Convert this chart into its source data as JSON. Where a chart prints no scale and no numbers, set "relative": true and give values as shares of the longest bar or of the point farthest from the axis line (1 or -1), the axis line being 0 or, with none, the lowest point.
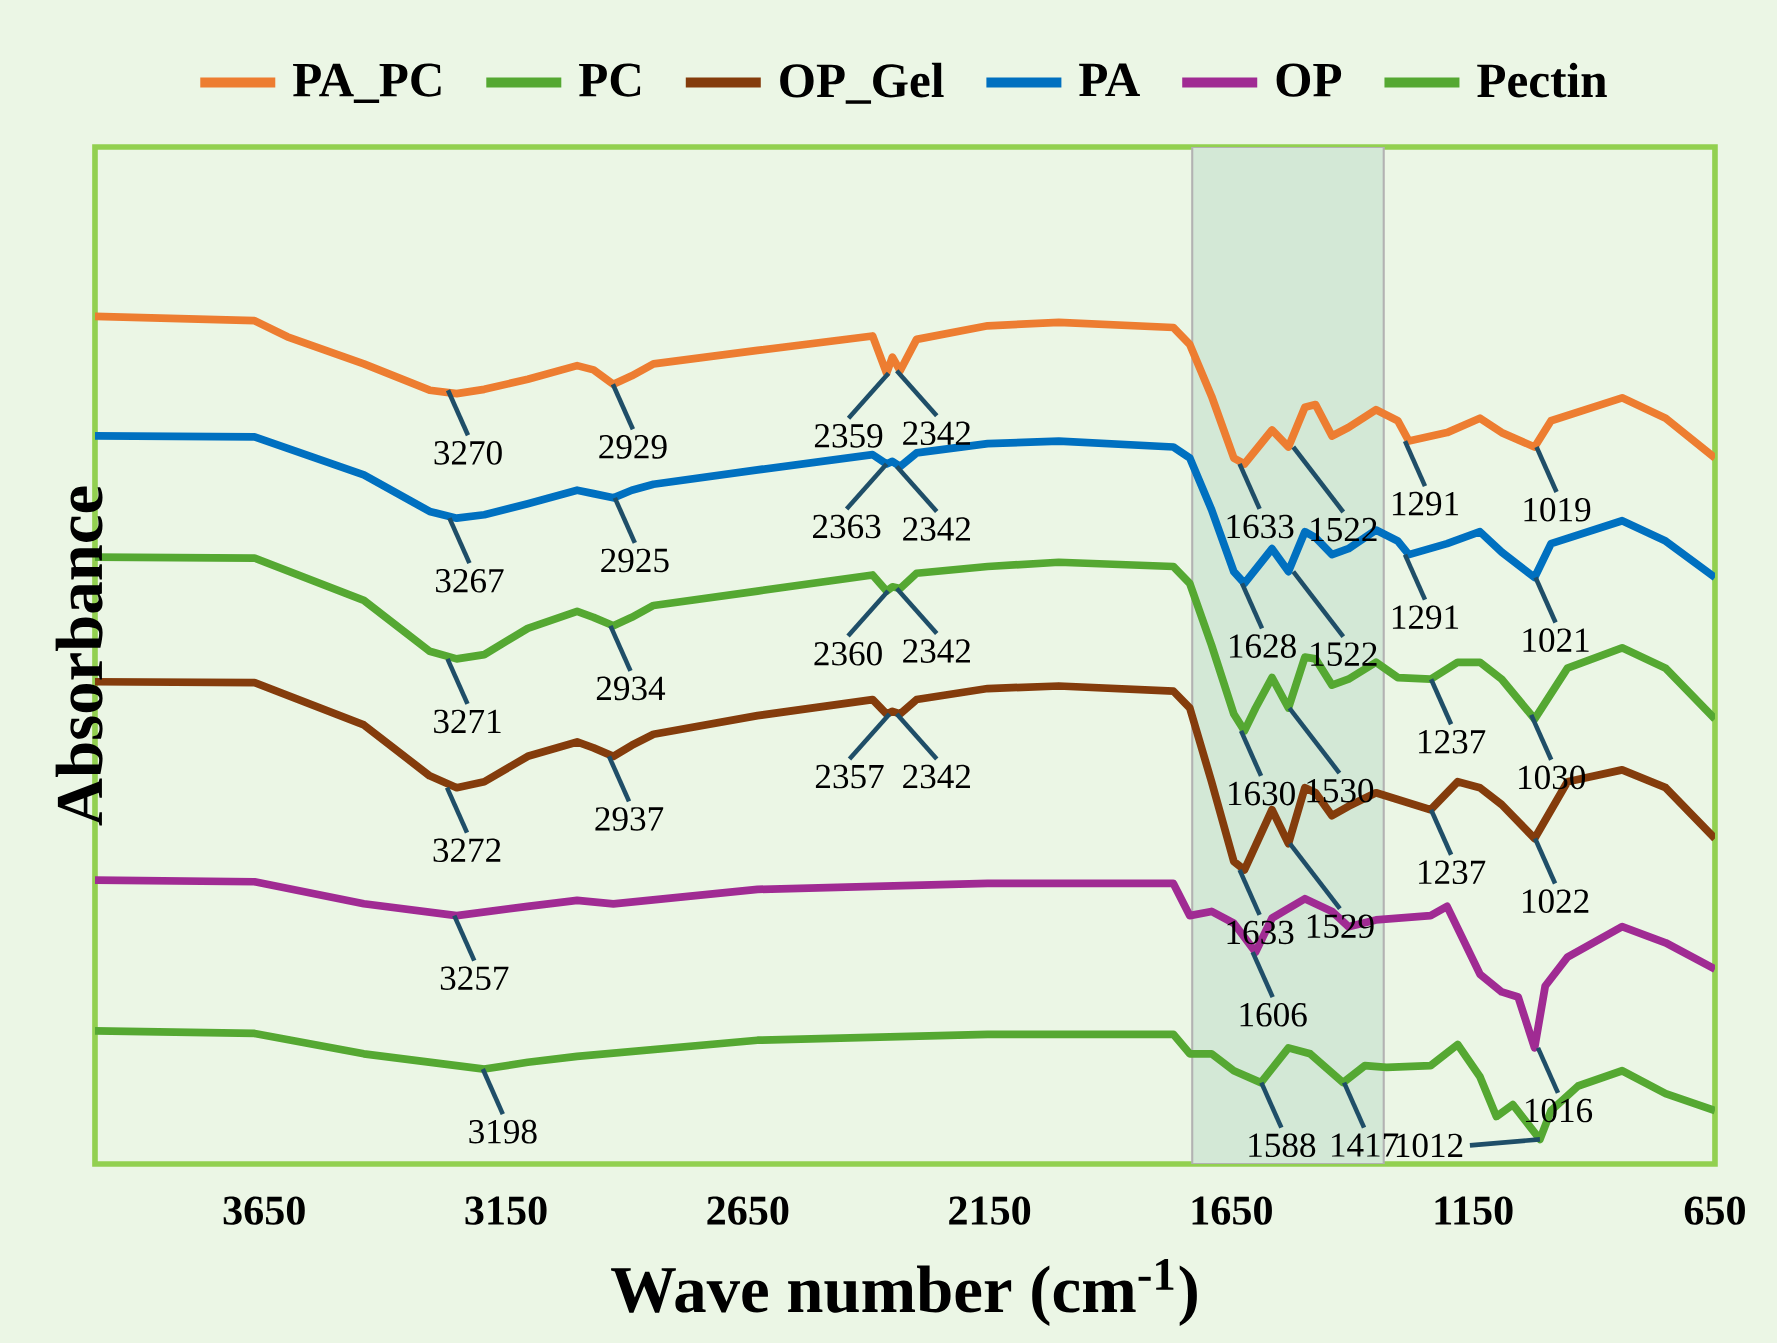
{
  "chart_data": {
    "type": "line",
    "relative": true,
    "xlabel": "Wave number (cm$^{-1}$)",
    "ylabel": "Absorbance",
    "legend": "top",
    "xlim": [
      4000,
      650
    ],
    "xticks": [
      3650,
      3150,
      2650,
      2150,
      1650,
      1150,
      650
    ],
    "bands": [
      {
        "axis": "x",
        "from": 1731,
        "to": 1335,
        "color": "#d3e8d6"
      }
    ],
    "series": [
      {
        "name": "PA_PC",
        "color": "#ed7d31",
        "x": [
          4000,
          3670,
          3602,
          3444,
          3308,
          3252,
          3195,
          3105,
          3003,
          2969,
          2928,
          2890,
          2845,
          2630,
          2392,
          2363,
          2351,
          2335,
          2301,
          2154,
          2007,
          1770,
          1736,
          1691,
          1645,
          1623,
          1566,
          1532,
          1498,
          1476,
          1442,
          1408,
          1351,
          1306,
          1283,
          1204,
          1136,
          1091,
          1023,
          989,
          842,
          752,
          650
        ],
        "values": [
          1.0,
          0.995,
          0.976,
          0.944,
          0.913,
          0.909,
          0.914,
          0.926,
          0.942,
          0.937,
          0.92,
          0.93,
          0.944,
          0.96,
          0.977,
          0.933,
          0.952,
          0.936,
          0.973,
          0.989,
          0.993,
          0.987,
          0.967,
          0.906,
          0.833,
          0.826,
          0.866,
          0.846,
          0.893,
          0.896,
          0.859,
          0.869,
          0.89,
          0.877,
          0.853,
          0.863,
          0.88,
          0.863,
          0.846,
          0.877,
          0.904,
          0.88,
          0.833
        ]
      },
      {
        "name": "PC",
        "color": "#55a832",
        "x": [
          4000,
          3670,
          3444,
          3308,
          3252,
          3195,
          3105,
          3003,
          2969,
          2928,
          2890,
          2845,
          2630,
          2392,
          2363,
          2351,
          2335,
          2301,
          2154,
          2007,
          1770,
          1736,
          1691,
          1645,
          1623,
          1600,
          1566,
          1532,
          1498,
          1476,
          1442,
          1408,
          1351,
          1306,
          1238,
          1182,
          1136,
          1091,
          1023,
          955,
          842,
          752,
          650
        ],
        "values": [
          0.716,
          0.715,
          0.665,
          0.605,
          0.596,
          0.601,
          0.632,
          0.652,
          0.645,
          0.635,
          0.645,
          0.659,
          0.676,
          0.695,
          0.676,
          0.681,
          0.679,
          0.697,
          0.705,
          0.71,
          0.705,
          0.685,
          0.612,
          0.531,
          0.511,
          0.538,
          0.574,
          0.538,
          0.598,
          0.596,
          0.565,
          0.572,
          0.592,
          0.574,
          0.572,
          0.592,
          0.592,
          0.572,
          0.525,
          0.585,
          0.609,
          0.585,
          0.525
        ]
      },
      {
        "name": "OP_Gel",
        "color": "#843c0c",
        "x": [
          4000,
          3670,
          3444,
          3308,
          3252,
          3195,
          3105,
          3003,
          2969,
          2928,
          2890,
          2845,
          2630,
          2392,
          2363,
          2351,
          2335,
          2301,
          2154,
          2007,
          1770,
          1736,
          1691,
          1645,
          1623,
          1566,
          1532,
          1498,
          1476,
          1442,
          1408,
          1351,
          1238,
          1182,
          1136,
          1091,
          1023,
          955,
          842,
          752,
          650
        ],
        "values": [
          0.569,
          0.568,
          0.518,
          0.458,
          0.444,
          0.451,
          0.481,
          0.498,
          0.491,
          0.481,
          0.494,
          0.507,
          0.529,
          0.548,
          0.531,
          0.534,
          0.531,
          0.548,
          0.561,
          0.564,
          0.558,
          0.538,
          0.451,
          0.357,
          0.347,
          0.418,
          0.378,
          0.444,
          0.438,
          0.411,
          0.422,
          0.438,
          0.418,
          0.451,
          0.444,
          0.424,
          0.384,
          0.451,
          0.465,
          0.444,
          0.384
        ]
      },
      {
        "name": "PA",
        "color": "#0070c0",
        "x": [
          4000,
          3670,
          3444,
          3308,
          3252,
          3195,
          3105,
          3003,
          2969,
          2928,
          2890,
          2845,
          2630,
          2392,
          2363,
          2351,
          2335,
          2301,
          2154,
          2007,
          1770,
          1736,
          1691,
          1645,
          1623,
          1566,
          1532,
          1498,
          1476,
          1442,
          1408,
          1351,
          1306,
          1283,
          1204,
          1136,
          1091,
          1023,
          989,
          842,
          752,
          650
        ],
        "values": [
          0.859,
          0.858,
          0.813,
          0.77,
          0.762,
          0.766,
          0.779,
          0.795,
          0.791,
          0.786,
          0.795,
          0.802,
          0.819,
          0.837,
          0.826,
          0.829,
          0.823,
          0.839,
          0.85,
          0.853,
          0.846,
          0.833,
          0.772,
          0.699,
          0.685,
          0.726,
          0.699,
          0.746,
          0.739,
          0.719,
          0.726,
          0.748,
          0.735,
          0.719,
          0.732,
          0.746,
          0.722,
          0.692,
          0.732,
          0.759,
          0.735,
          0.692
        ]
      },
      {
        "name": "OP",
        "color": "#a02b93",
        "x": [
          4000,
          3670,
          3444,
          3252,
          3105,
          3003,
          2928,
          2630,
          2154,
          1770,
          1736,
          1691,
          1645,
          1600,
          1566,
          1498,
          1442,
          1408,
          1351,
          1238,
          1204,
          1136,
          1091,
          1057,
          1023,
          1001,
          955,
          842,
          752,
          650
        ],
        "values": [
          0.335,
          0.333,
          0.307,
          0.293,
          0.304,
          0.311,
          0.307,
          0.324,
          0.331,
          0.331,
          0.293,
          0.298,
          0.284,
          0.25,
          0.29,
          0.313,
          0.298,
          0.28,
          0.288,
          0.293,
          0.304,
          0.224,
          0.203,
          0.197,
          0.137,
          0.21,
          0.244,
          0.28,
          0.261,
          0.23
        ]
      },
      {
        "name": "Pectin",
        "color": "#55a832",
        "x": [
          4000,
          3670,
          3444,
          3195,
          3105,
          3003,
          2630,
          2154,
          1770,
          1736,
          1691,
          1645,
          1589,
          1532,
          1487,
          1419,
          1374,
          1329,
          1238,
          1182,
          1136,
          1102,
          1068,
          1012,
          989,
          933,
          842,
          752,
          650
        ],
        "values": [
          0.157,
          0.154,
          0.13,
          0.112,
          0.12,
          0.127,
          0.146,
          0.153,
          0.153,
          0.13,
          0.13,
          0.11,
          0.096,
          0.137,
          0.13,
          0.096,
          0.116,
          0.114,
          0.116,
          0.141,
          0.103,
          0.056,
          0.07,
          0.029,
          0.063,
          0.092,
          0.11,
          0.083,
          0.063
        ]
      }
    ],
    "annotations": [
      {
        "text": "3270",
        "x": 3270,
        "y": 0.913
      },
      {
        "text": "2929",
        "x": 2929,
        "y": 0.92
      },
      {
        "text": "2359",
        "x": 2359,
        "y": 0.933
      },
      {
        "text": "2342",
        "x": 2342,
        "y": 0.936
      },
      {
        "text": "1633",
        "x": 1633,
        "y": 0.826
      },
      {
        "text": "1522",
        "x": 1522,
        "y": 0.846
      },
      {
        "text": "1291",
        "x": 1291,
        "y": 0.853
      },
      {
        "text": "1019",
        "x": 1019,
        "y": 0.846
      },
      {
        "text": "3267",
        "x": 3267,
        "y": 0.762
      },
      {
        "text": "2925",
        "x": 2925,
        "y": 0.786
      },
      {
        "text": "2363",
        "x": 2363,
        "y": 0.826
      },
      {
        "text": "2342",
        "x": 2342,
        "y": 0.823
      },
      {
        "text": "1628",
        "x": 1628,
        "y": 0.685
      },
      {
        "text": "1522",
        "x": 1522,
        "y": 0.699
      },
      {
        "text": "1291",
        "x": 1291,
        "y": 0.719
      },
      {
        "text": "1021",
        "x": 1021,
        "y": 0.692
      },
      {
        "text": "3271",
        "x": 3271,
        "y": 0.596
      },
      {
        "text": "2934",
        "x": 2934,
        "y": 0.635
      },
      {
        "text": "2360",
        "x": 2360,
        "y": 0.676
      },
      {
        "text": "2342",
        "x": 2342,
        "y": 0.679
      },
      {
        "text": "1630",
        "x": 1630,
        "y": 0.511
      },
      {
        "text": "1530",
        "x": 1530,
        "y": 0.538
      },
      {
        "text": "1237",
        "x": 1237,
        "y": 0.572
      },
      {
        "text": "1030",
        "x": 1030,
        "y": 0.53
      },
      {
        "text": "3272",
        "x": 3272,
        "y": 0.444
      },
      {
        "text": "2937",
        "x": 2937,
        "y": 0.481
      },
      {
        "text": "2357",
        "x": 2357,
        "y": 0.531
      },
      {
        "text": "2342",
        "x": 2342,
        "y": 0.531
      },
      {
        "text": "1633",
        "x": 1633,
        "y": 0.347
      },
      {
        "text": "1529",
        "x": 1529,
        "y": 0.378
      },
      {
        "text": "1237",
        "x": 1237,
        "y": 0.418
      },
      {
        "text": "1022",
        "x": 1022,
        "y": 0.384
      },
      {
        "text": "3257",
        "x": 3257,
        "y": 0.293
      },
      {
        "text": "1606",
        "x": 1606,
        "y": 0.25
      },
      {
        "text": "1016",
        "x": 1016,
        "y": 0.137
      },
      {
        "text": "3198",
        "x": 3198,
        "y": 0.112
      },
      {
        "text": "1588",
        "x": 1588,
        "y": 0.096
      },
      {
        "text": "1417",
        "x": 1417,
        "y": 0.096
      },
      {
        "text": "1012",
        "x": 1012,
        "y": 0.029
      }
    ]
  }
}
